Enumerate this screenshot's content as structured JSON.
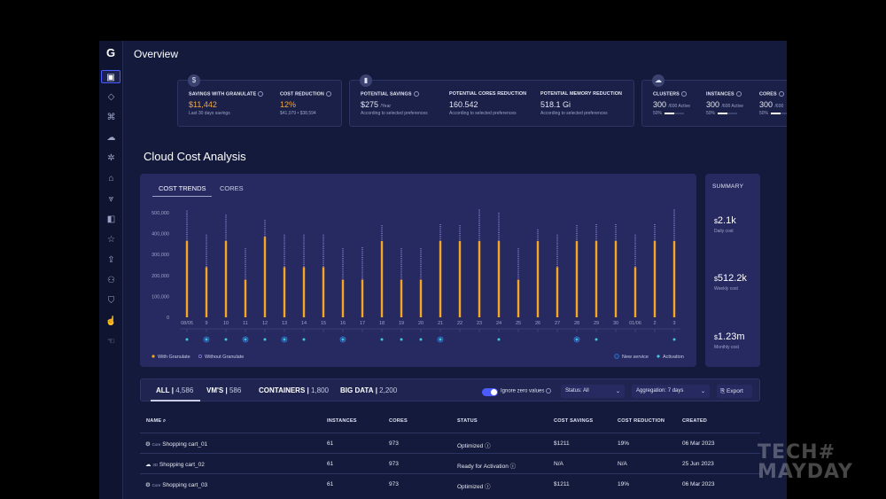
{
  "app": {
    "logo": "G",
    "title": "Overview"
  },
  "sidebar": [
    {
      "icon": "dashboard-icon",
      "glyph": "▣"
    },
    {
      "icon": "cube-icon",
      "glyph": "◇"
    },
    {
      "icon": "hierarchy-icon",
      "glyph": "⌘"
    },
    {
      "icon": "cloud-icon",
      "glyph": "☁"
    },
    {
      "icon": "settings-icon",
      "glyph": "✲"
    },
    {
      "icon": "home-icon",
      "glyph": "⌂"
    },
    {
      "icon": "filter-icon",
      "glyph": "⩔"
    },
    {
      "icon": "back-icon",
      "glyph": "◧"
    },
    {
      "icon": "star-icon",
      "glyph": "☆"
    },
    {
      "icon": "upload-icon",
      "glyph": "⇪"
    },
    {
      "icon": "users-icon",
      "glyph": "⚇"
    },
    {
      "icon": "shield-icon",
      "glyph": "⛉"
    },
    {
      "icon": "pointer-icon",
      "glyph": "☝"
    },
    {
      "icon": "hand-icon",
      "glyph": "☜"
    }
  ],
  "cards": {
    "savings": {
      "icon": "$",
      "with_granulate": {
        "label": "SAVINGS WITH GRANULATE",
        "value": "$11,442",
        "sub": "Last 30 days savings"
      },
      "cost_reduction": {
        "label": "COST REDUCTION",
        "value": "12%",
        "sub_a": "$41,079",
        "sub_sep": "•",
        "sub_b": "$38,594"
      }
    },
    "potential": {
      "potential_savings": {
        "label": "POTENTIAL SAVINGS",
        "value": "$275",
        "unit": "/Year",
        "sub": "According to selected preferences"
      },
      "cores_reduction": {
        "label": "POTENTIAL CORES REDUCTION",
        "value": "160.542",
        "sub": "According to selected preferences"
      },
      "memory_reduction": {
        "label": "POTENTIAL MEMORY REDUCTION",
        "value": "518.1 Gi",
        "sub": "According to selected preferences"
      }
    },
    "infra": {
      "clusters": {
        "label": "CLUSTERS",
        "value": "300",
        "unit": "/600 Active",
        "pct": "50%",
        "fill": 0.5
      },
      "instances": {
        "label": "INSTANCES",
        "value": "300",
        "unit": "/600 Active",
        "pct": "50%",
        "fill": 0.5
      },
      "cores": {
        "label": "CORES",
        "value": "300",
        "unit": "/600",
        "pct": "50%",
        "fill": 0.5
      }
    }
  },
  "section_title": "Cloud Cost Analysis",
  "chart_tabs": {
    "active": "COST TRENDS",
    "other": "CORES"
  },
  "legend": {
    "with": "With Granulate",
    "without": "Without Granulate",
    "new_service": "New service",
    "activation": "Activation"
  },
  "chart_data": {
    "type": "bar",
    "categories": [
      "08/05",
      "9",
      "10",
      "11",
      "12",
      "13",
      "14",
      "15",
      "16",
      "17",
      "18",
      "19",
      "20",
      "21",
      "22",
      "23",
      "24",
      "25",
      "26",
      "27",
      "28",
      "29",
      "30",
      "01/06",
      "2",
      "3"
    ],
    "series": [
      {
        "name": "With Granulate",
        "values": [
          365000,
          240000,
          365000,
          180000,
          385000,
          240000,
          240000,
          240000,
          180000,
          180000,
          365000,
          180000,
          180000,
          365000,
          365000,
          365000,
          365000,
          180000,
          365000,
          240000,
          365000,
          365000,
          365000,
          240000,
          365000,
          365000
        ]
      },
      {
        "name": "Without Granulate",
        "values": [
          510000,
          395000,
          490000,
          330000,
          465000,
          395000,
          395000,
          395000,
          330000,
          335000,
          440000,
          330000,
          330000,
          445000,
          440000,
          515000,
          500000,
          330000,
          420000,
          395000,
          440000,
          445000,
          445000,
          395000,
          445000,
          515000
        ]
      }
    ],
    "yticks": [
      "0",
      "100,000",
      "200,000",
      "300,000",
      "400,000",
      "500,000"
    ],
    "ylim": [
      0,
      500000
    ],
    "markers": {
      "activation": [
        "08/05",
        "10",
        "12",
        "14",
        "18",
        "19",
        "20",
        "24",
        "29",
        "3"
      ],
      "new_service": [
        "9",
        "11",
        "13",
        "16",
        "21",
        "28"
      ]
    }
  },
  "summary": {
    "title": "SUMMARY",
    "daily": {
      "symbol": "$",
      "value": "2.1k",
      "label": "Daily cost"
    },
    "weekly": {
      "symbol": "$",
      "value": "512.2k",
      "label": "Weekly cost"
    },
    "monthly": {
      "symbol": "$",
      "value": "1.23m",
      "label": "Monthly cost"
    }
  },
  "filters": {
    "all": {
      "label": "ALL",
      "count": "4,586"
    },
    "vms": {
      "label": "VM'S",
      "count": "586"
    },
    "containers": {
      "label": "CONTAINERS",
      "count": "1,800"
    },
    "bigdata": {
      "label": "BIG DATA",
      "count": "2,200"
    },
    "ignore_zero": "Ignore zero values",
    "status": "Status: All",
    "aggregation": "Aggregation: 7 days",
    "export": "Export"
  },
  "table": {
    "headers": [
      "NAME",
      "INSTANCES",
      "CORES",
      "STATUS",
      "COST SAVINGS",
      "COST REDUCTION",
      "CREATED"
    ],
    "rows": [
      {
        "tag": "Core",
        "name": "Shopping cart_01",
        "instances": "61",
        "cores": "973",
        "status": "Optimized",
        "savings": "$1211",
        "reduction": "19%",
        "created": "06 Mar 2023"
      },
      {
        "tag": "3D",
        "name": "Shopping cart_02",
        "instances": "61",
        "cores": "973",
        "status": "Ready for Activation",
        "savings": "N/A",
        "reduction": "N/A",
        "created": "25 Jun 2023"
      },
      {
        "tag": "Core",
        "name": "Shopping cart_03",
        "instances": "61",
        "cores": "973",
        "status": "Optimized",
        "savings": "$1211",
        "reduction": "19%",
        "created": "06 Mar 2023"
      }
    ]
  },
  "watermark": {
    "line1": "TECH#",
    "line2": "MAYDAY"
  }
}
